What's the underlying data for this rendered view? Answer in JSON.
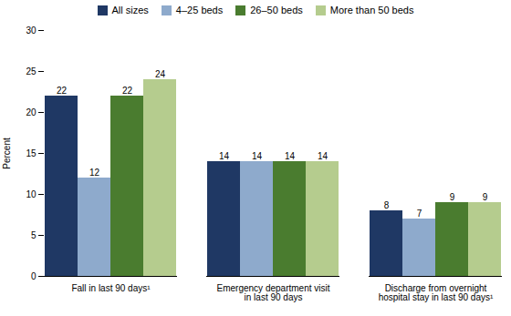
{
  "chart_data": {
    "type": "bar",
    "categories": [
      "Fall in last 90 days¹",
      "Emergency department visit\nin last 90 days",
      "Discharge from overnight\nhospital stay in last 90 days¹"
    ],
    "series": [
      {
        "name": "All sizes",
        "color": "#1f3864",
        "values": [
          22,
          14,
          8
        ]
      },
      {
        "name": "4–25 beds",
        "color": "#8eaacc",
        "values": [
          12,
          14,
          7
        ]
      },
      {
        "name": "26–50 beds",
        "color": "#4a7c2f",
        "values": [
          22,
          14,
          9
        ]
      },
      {
        "name": "More than 50 beds",
        "color": "#b5cc8e",
        "values": [
          24,
          14,
          9
        ]
      }
    ],
    "ylabel": "Percent",
    "ylim": [
      0,
      30
    ],
    "yticks": [
      0,
      5,
      10,
      15,
      20,
      25,
      30
    ],
    "grid": false,
    "legend": "top",
    "data_labels": true
  }
}
